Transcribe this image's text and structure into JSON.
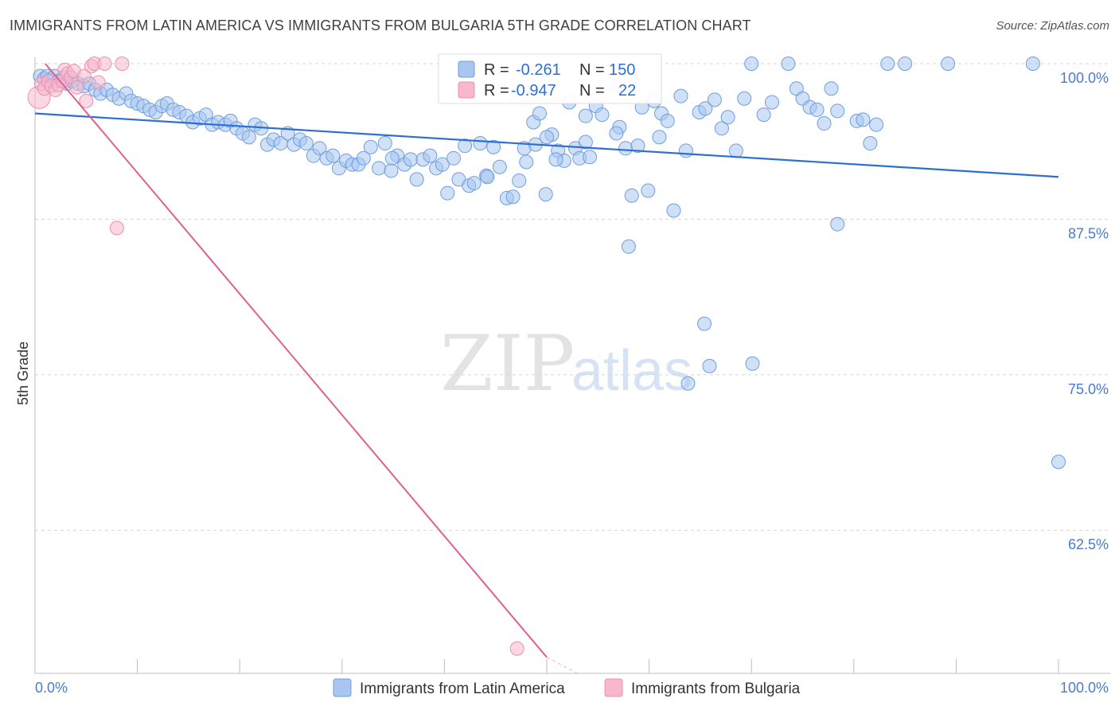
{
  "header": {
    "title": "IMMIGRANTS FROM LATIN AMERICA VS IMMIGRANTS FROM BULGARIA 5TH GRADE CORRELATION CHART",
    "source": "Source: ZipAtlas.com"
  },
  "watermark": {
    "zip": "ZIP",
    "atlas": "atlas"
  },
  "legend_top": {
    "rows": [
      {
        "r_label": "R =",
        "r_value": "-0.261",
        "n_label": "N =",
        "n_value": "150"
      },
      {
        "r_label": "R =",
        "r_value": "-0.947",
        "n_label": "N =",
        "n_value": "22"
      }
    ]
  },
  "colors": {
    "blue_fill": "#a8c6f0",
    "blue_stroke": "#6f9ee0",
    "blue_line": "#2d6fd1",
    "pink_fill": "#f7b8cc",
    "pink_stroke": "#ec8fae",
    "pink_line": "#e0608c",
    "grid": "#d5d5d5",
    "tick_label": "#4a7bd1"
  },
  "chart_data": {
    "type": "scatter",
    "title": "IMMIGRANTS FROM LATIN AMERICA VS IMMIGRANTS FROM BULGARIA 5TH GRADE CORRELATION CHART",
    "xlabel": "",
    "ylabel": "5th Grade",
    "xlim": [
      0,
      100
    ],
    "ylim": [
      51,
      101.2
    ],
    "x_tick_labels": [
      "0.0%",
      "100.0%"
    ],
    "y_ticks": [
      62.5,
      75.0,
      87.5,
      100.0
    ],
    "y_tick_labels": [
      "62.5%",
      "75.0%",
      "87.5%",
      "100.0%"
    ],
    "grid": "horizontal dashed",
    "legend_position": "bottom",
    "series": [
      {
        "name": "Immigrants from Latin America",
        "color": "#a8c6f0",
        "trend": {
          "x": [
            0,
            100
          ],
          "y": [
            96.0,
            90.9
          ]
        },
        "points": [
          [
            0.5,
            99.0
          ],
          [
            0.9,
            98.8
          ],
          [
            1.2,
            99.0
          ],
          [
            1.5,
            98.7
          ],
          [
            1.9,
            99.0
          ],
          [
            2.3,
            98.6
          ],
          [
            2.8,
            98.9
          ],
          [
            3.1,
            98.4
          ],
          [
            3.6,
            98.6
          ],
          [
            4.2,
            98.4
          ],
          [
            4.8,
            98.2
          ],
          [
            5.3,
            98.4
          ],
          [
            5.9,
            97.9
          ],
          [
            6.4,
            97.6
          ],
          [
            7.0,
            97.9
          ],
          [
            7.6,
            97.5
          ],
          [
            8.2,
            97.2
          ],
          [
            8.9,
            97.6
          ],
          [
            9.4,
            97.0
          ],
          [
            10.0,
            96.8
          ],
          [
            10.6,
            96.6
          ],
          [
            11.2,
            96.3
          ],
          [
            11.8,
            96.1
          ],
          [
            12.4,
            96.6
          ],
          [
            12.9,
            96.8
          ],
          [
            13.5,
            96.3
          ],
          [
            14.1,
            96.1
          ],
          [
            14.8,
            95.8
          ],
          [
            15.4,
            95.3
          ],
          [
            16.1,
            95.6
          ],
          [
            16.7,
            95.9
          ],
          [
            17.3,
            95.1
          ],
          [
            17.9,
            95.3
          ],
          [
            18.6,
            95.1
          ],
          [
            19.1,
            95.4
          ],
          [
            19.7,
            94.8
          ],
          [
            20.3,
            94.4
          ],
          [
            20.9,
            94.1
          ],
          [
            21.5,
            95.1
          ],
          [
            22.1,
            94.8
          ],
          [
            22.7,
            93.5
          ],
          [
            23.3,
            93.9
          ],
          [
            24.0,
            93.6
          ],
          [
            24.7,
            94.4
          ],
          [
            25.3,
            93.5
          ],
          [
            25.9,
            93.9
          ],
          [
            26.5,
            93.6
          ],
          [
            27.2,
            92.6
          ],
          [
            27.8,
            93.2
          ],
          [
            28.5,
            92.4
          ],
          [
            29.1,
            92.6
          ],
          [
            29.7,
            91.6
          ],
          [
            30.4,
            92.2
          ],
          [
            31.0,
            91.9
          ],
          [
            31.6,
            91.9
          ],
          [
            32.1,
            92.4
          ],
          [
            32.8,
            93.3
          ],
          [
            33.6,
            91.6
          ],
          [
            34.2,
            93.6
          ],
          [
            34.8,
            91.4
          ],
          [
            35.4,
            92.6
          ],
          [
            36.1,
            91.9
          ],
          [
            36.7,
            92.3
          ],
          [
            37.3,
            90.7
          ],
          [
            37.9,
            92.3
          ],
          [
            38.6,
            92.6
          ],
          [
            39.2,
            91.6
          ],
          [
            39.8,
            91.9
          ],
          [
            40.3,
            89.6
          ],
          [
            40.9,
            92.4
          ],
          [
            41.4,
            90.7
          ],
          [
            42.0,
            93.4
          ],
          [
            42.4,
            90.2
          ],
          [
            42.9,
            90.4
          ],
          [
            43.5,
            93.6
          ],
          [
            44.1,
            91.0
          ],
          [
            44.8,
            93.3
          ],
          [
            45.4,
            91.7
          ],
          [
            46.1,
            89.2
          ],
          [
            46.7,
            89.3
          ],
          [
            47.3,
            90.6
          ],
          [
            48.0,
            92.1
          ],
          [
            48.7,
            95.3
          ],
          [
            49.3,
            96.0
          ],
          [
            49.9,
            89.5
          ],
          [
            50.5,
            94.3
          ],
          [
            51.1,
            93.0
          ],
          [
            51.7,
            92.2
          ],
          [
            52.2,
            96.9
          ],
          [
            52.8,
            93.2
          ],
          [
            53.2,
            92.4
          ],
          [
            53.8,
            93.7
          ],
          [
            54.2,
            92.5
          ],
          [
            54.8,
            96.6
          ],
          [
            55.4,
            95.9
          ],
          [
            56.1,
            98.3
          ],
          [
            57.1,
            94.9
          ],
          [
            57.7,
            93.2
          ],
          [
            58.3,
            89.4
          ],
          [
            58.9,
            93.4
          ],
          [
            59.3,
            96.5
          ],
          [
            59.9,
            89.8
          ],
          [
            60.5,
            97.0
          ],
          [
            61.2,
            96.0
          ],
          [
            61.8,
            95.4
          ],
          [
            62.4,
            88.2
          ],
          [
            63.1,
            97.4
          ],
          [
            63.6,
            93.0
          ],
          [
            64.9,
            96.1
          ],
          [
            65.5,
            96.4
          ],
          [
            66.4,
            97.1
          ],
          [
            67.1,
            94.8
          ],
          [
            67.7,
            95.7
          ],
          [
            68.5,
            93.0
          ],
          [
            69.3,
            97.2
          ],
          [
            70.0,
            100.0
          ],
          [
            71.2,
            95.9
          ],
          [
            72.0,
            96.9
          ],
          [
            73.6,
            100.0
          ],
          [
            74.4,
            98.0
          ],
          [
            75.0,
            97.2
          ],
          [
            75.7,
            96.5
          ],
          [
            76.4,
            96.3
          ],
          [
            77.1,
            95.2
          ],
          [
            77.8,
            98.0
          ],
          [
            78.4,
            96.2
          ],
          [
            80.3,
            95.4
          ],
          [
            80.9,
            95.5
          ],
          [
            81.6,
            93.6
          ],
          [
            82.2,
            95.1
          ],
          [
            83.3,
            100.0
          ],
          [
            85.0,
            100.0
          ],
          [
            89.2,
            100.0
          ],
          [
            97.5,
            100.0
          ],
          [
            58.0,
            85.3
          ],
          [
            63.8,
            74.3
          ],
          [
            65.4,
            79.1
          ],
          [
            65.9,
            75.7
          ],
          [
            70.1,
            75.9
          ],
          [
            78.4,
            87.1
          ],
          [
            100.0,
            68.0
          ],
          [
            53.8,
            95.8
          ],
          [
            56.8,
            94.4
          ],
          [
            61.0,
            94.1
          ],
          [
            47.8,
            93.2
          ],
          [
            48.9,
            93.5
          ],
          [
            50.9,
            92.3
          ],
          [
            50.0,
            94.1
          ],
          [
            34.9,
            92.4
          ],
          [
            44.2,
            90.9
          ]
        ]
      },
      {
        "name": "Immigrants from Bulgaria",
        "color": "#f7b8cc",
        "trend": {
          "x": [
            1.0,
            50.0
          ],
          "y": [
            100.0,
            52.3
          ]
        },
        "trend_dashed": {
          "x": [
            50.0,
            53.0
          ],
          "y": [
            52.3,
            49.4
          ]
        },
        "points": [
          [
            0.4,
            97.3
          ],
          [
            0.6,
            98.4
          ],
          [
            0.9,
            98.0
          ],
          [
            1.3,
            98.6
          ],
          [
            1.6,
            98.2
          ],
          [
            2.0,
            97.9
          ],
          [
            2.3,
            98.3
          ],
          [
            2.7,
            98.6
          ],
          [
            2.9,
            99.5
          ],
          [
            3.2,
            99.2
          ],
          [
            3.5,
            98.9
          ],
          [
            3.8,
            99.4
          ],
          [
            4.1,
            98.1
          ],
          [
            4.8,
            99.0
          ],
          [
            5.0,
            97.0
          ],
          [
            5.5,
            99.8
          ],
          [
            5.8,
            100.0
          ],
          [
            6.2,
            98.5
          ],
          [
            6.8,
            100.0
          ],
          [
            8.5,
            100.0
          ],
          [
            8.0,
            86.8
          ],
          [
            47.1,
            53.0
          ]
        ]
      }
    ]
  },
  "bottom_legend": {
    "items": [
      {
        "label": "Immigrants from Latin America"
      },
      {
        "label": "Immigrants from Bulgaria"
      }
    ]
  }
}
